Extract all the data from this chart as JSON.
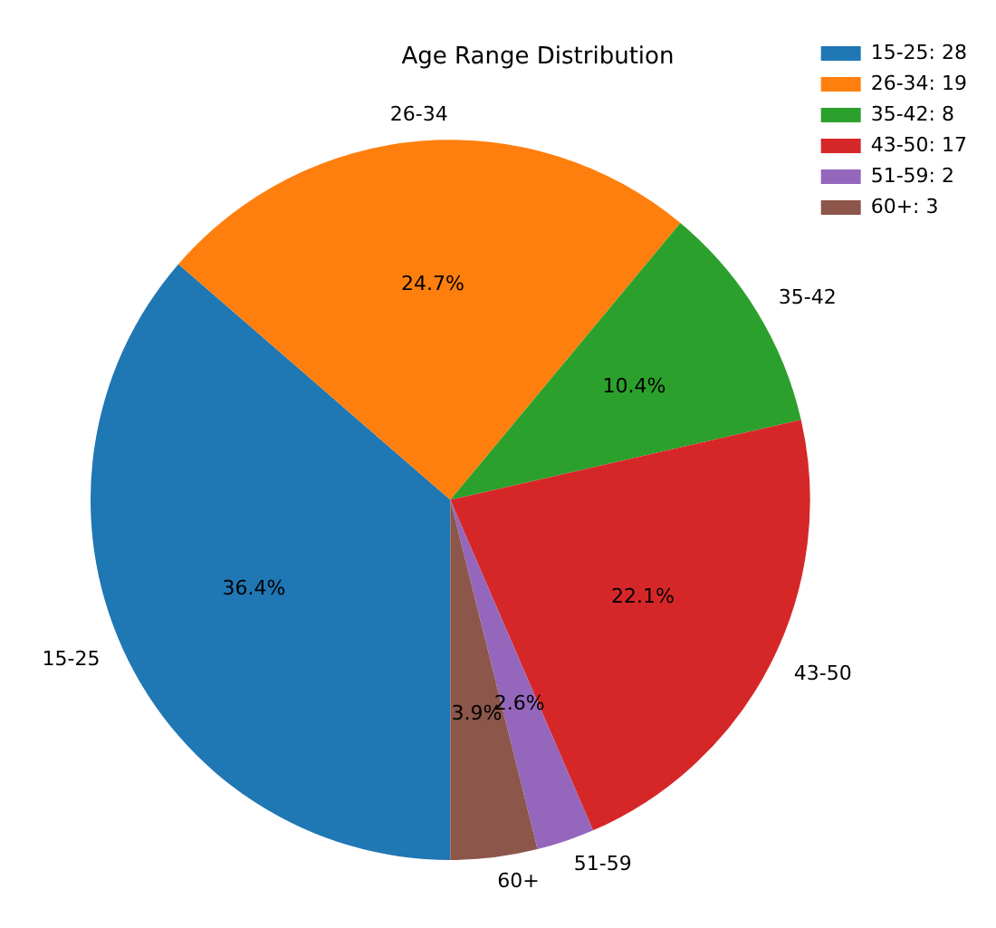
{
  "chart_data": {
    "type": "pie",
    "title": "Age Range Distribution",
    "categories": [
      "15-25: 28",
      "26-34: 19",
      "35-42: 8",
      "43-50: 17",
      "51-59: 2",
      "60+: 3"
    ],
    "values": [
      36.4,
      24.7,
      10.4,
      22.1,
      2.6,
      3.9
    ],
    "colors": [
      "#1f77b4",
      "#ff7f0e",
      "#2ca02c",
      "#d62728",
      "#9467bd",
      "#8c564b"
    ],
    "value_labels": [
      "36.4%",
      "24.7%",
      "10.4%",
      "22.1%",
      "2.6%",
      "3.9%"
    ],
    "annotations": [
      "15-25",
      "26-34",
      "35-42",
      "43-50",
      "51-59",
      "60+"
    ],
    "legend": "top right"
  }
}
